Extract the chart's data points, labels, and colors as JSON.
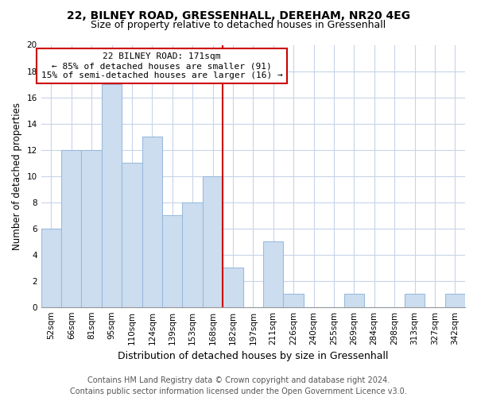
{
  "title": "22, BILNEY ROAD, GRESSENHALL, DEREHAM, NR20 4EG",
  "subtitle": "Size of property relative to detached houses in Gressenhall",
  "xlabel": "Distribution of detached houses by size in Gressenhall",
  "ylabel": "Number of detached properties",
  "categories": [
    "52sqm",
    "66sqm",
    "81sqm",
    "95sqm",
    "110sqm",
    "124sqm",
    "139sqm",
    "153sqm",
    "168sqm",
    "182sqm",
    "197sqm",
    "211sqm",
    "226sqm",
    "240sqm",
    "255sqm",
    "269sqm",
    "284sqm",
    "298sqm",
    "313sqm",
    "327sqm",
    "342sqm"
  ],
  "values": [
    6,
    12,
    12,
    17,
    11,
    13,
    7,
    8,
    10,
    3,
    0,
    5,
    1,
    0,
    0,
    1,
    0,
    0,
    1,
    0,
    1
  ],
  "bar_color": "#ccddf0",
  "bar_edge_color": "#99bbdd",
  "vline_x_index": 8,
  "vline_color": "#cc0000",
  "annotation_line1": "22 BILNEY ROAD: 171sqm",
  "annotation_line2": "← 85% of detached houses are smaller (91)",
  "annotation_line3": "15% of semi-detached houses are larger (16) →",
  "box_edge_color": "#cc0000",
  "ylim": [
    0,
    20
  ],
  "yticks": [
    0,
    2,
    4,
    6,
    8,
    10,
    12,
    14,
    16,
    18,
    20
  ],
  "grid_color": "#c8d4e8",
  "footer1": "Contains HM Land Registry data © Crown copyright and database right 2024.",
  "footer2": "Contains public sector information licensed under the Open Government Licence v3.0.",
  "title_fontsize": 10,
  "subtitle_fontsize": 9,
  "xlabel_fontsize": 9,
  "ylabel_fontsize": 8.5,
  "annotation_fontsize": 8,
  "footer_fontsize": 7,
  "tick_fontsize": 7.5
}
